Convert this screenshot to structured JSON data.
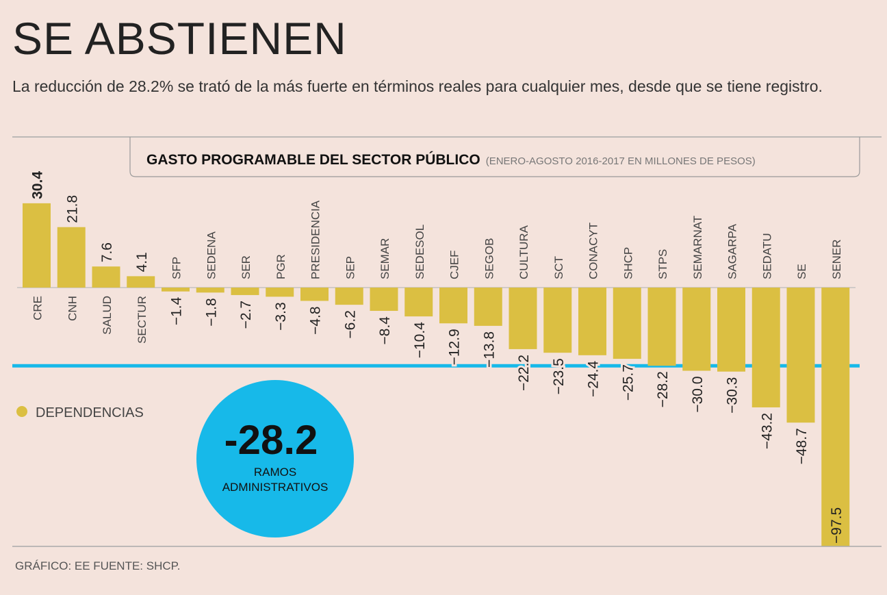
{
  "title": "SE ABSTIENEN",
  "subtitle": "La reducción de 28.2% se trató de la más fuerte en términos reales para cualquier mes, desde que se tiene registro.",
  "footer": "GRÁFICO: EE  FUENTE: SHCP.",
  "colors": {
    "bar": "#dbbf42",
    "highlight": "#17b9e9",
    "background": "#f4e3dc"
  },
  "chart_data": {
    "type": "bar",
    "title": "GASTO PROGRAMABLE DEL SECTOR PÚBLICO",
    "subtitle": "(ENERO-AGOSTO 2016-2017 EN MILLONES DE PESOS)",
    "legend": {
      "label": "DEPENDENCIAS",
      "placement": "bottom-left"
    },
    "categories": [
      "CRE",
      "CNH",
      "SALUD",
      "SECTUR",
      "SFP",
      "SEDENA",
      "SER",
      "PGR",
      "PRESIDENCIA",
      "SEP",
      "SEMAR",
      "SEDESOL",
      "CJEF",
      "SEGOB",
      "CULTURA",
      "SCT",
      "CONACYT",
      "SHCP",
      "STPS",
      "SEMARNAT",
      "SAGARPA",
      "SEDATU",
      "SE",
      "SENER"
    ],
    "values": [
      30.4,
      21.8,
      7.6,
      4.1,
      -1.4,
      -1.8,
      -2.7,
      -3.3,
      -4.8,
      -6.2,
      -8.4,
      -10.4,
      -12.9,
      -13.8,
      -22.2,
      -23.5,
      -24.4,
      -25.7,
      -28.2,
      -30.0,
      -30.3,
      -43.2,
      -48.7,
      -97.5
    ],
    "reference_line": {
      "value": -28.2,
      "label": "RAMOS ADMINISTRATIVOS",
      "display": "-28.2"
    }
  }
}
